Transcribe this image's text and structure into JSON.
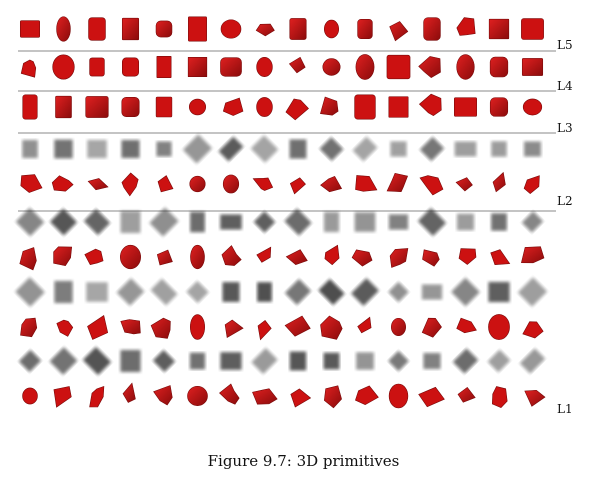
{
  "figure": {
    "caption": "Figure 9.7: 3D primitives",
    "levels": [
      {
        "label": "L5"
      },
      {
        "label": "L4"
      },
      {
        "label": "L3"
      },
      {
        "label": "L2"
      },
      {
        "label": "L1"
      }
    ],
    "colors": {
      "primitive": "#cc1111",
      "primitive_dark": "#7a0a0a",
      "filter_gray": "#3a3a3a",
      "divider": "#888888"
    }
  }
}
